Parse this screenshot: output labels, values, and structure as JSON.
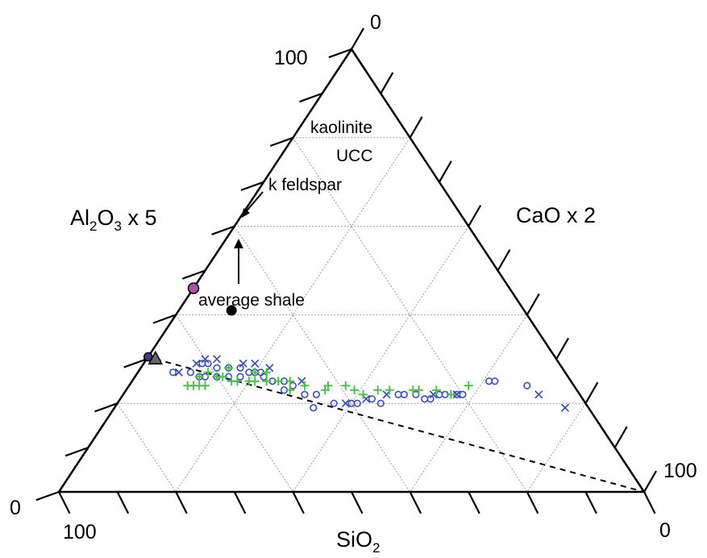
{
  "chart_data": {
    "type": "scatter",
    "subtype": "ternary",
    "axes": {
      "left": {
        "label_main": "Al",
        "sub1": "2",
        "mid": "O",
        "sub2": "3",
        "suffix": " x 5"
      },
      "right": {
        "label": "CaO x 2"
      },
      "bottom": {
        "label_main": "SiO",
        "sub": "2"
      }
    },
    "corner_labels": {
      "top_left": "100",
      "top_right": "0",
      "right_top": "100",
      "right_bottom": "0",
      "left_bottom": "0",
      "bottom_left": "100"
    },
    "grid": true,
    "ticks_per_side": 10,
    "reference_points": [
      {
        "name": "kaolinite",
        "sio2": 54,
        "al2o3x5": 46,
        "caox2": 0,
        "color": "#b04fb0"
      },
      {
        "name": "UCC",
        "sio2": 50,
        "al2o3x5": 41,
        "caox2": 9,
        "color": "#000000"
      },
      {
        "name": "k feldspar",
        "sio2": 69.5,
        "al2o3x5": 30.5,
        "caox2": 0,
        "color": "#3d3d8a"
      },
      {
        "name": "average shale",
        "sio2": 68.5,
        "al2o3x5": 30,
        "caox2": 1.5,
        "color": "#666666"
      }
    ],
    "annotations": {
      "kaolinite": "kaolinite",
      "ucc": "UCC",
      "k_feldspar": "k feldspar",
      "average_shale": "average shale"
    },
    "trend_line": {
      "from": {
        "sio2": 68.5,
        "caox2": 1.5
      },
      "to": {
        "sio2": 0,
        "caox2": 100
      },
      "style": "dashed"
    },
    "series": [
      {
        "marker": "circle",
        "color": "#3d4fb3",
        "points": [
          [
            67,
            6
          ],
          [
            64,
            9
          ],
          [
            63,
            11
          ],
          [
            62,
            12
          ],
          [
            61,
            10
          ],
          [
            60,
            14
          ],
          [
            60,
            11
          ],
          [
            59,
            13
          ],
          [
            58,
            16
          ],
          [
            57,
            15
          ],
          [
            56,
            18
          ],
          [
            55,
            17
          ],
          [
            54,
            19
          ],
          [
            53,
            20
          ],
          [
            52,
            21
          ],
          [
            52,
            22
          ],
          [
            51,
            24
          ],
          [
            50,
            27
          ],
          [
            49,
            26
          ],
          [
            48,
            28
          ],
          [
            47,
            31
          ],
          [
            45,
            33
          ],
          [
            47,
            34
          ],
          [
            43,
            37
          ],
          [
            40,
            40
          ],
          [
            39,
            41
          ],
          [
            36,
            43
          ],
          [
            35,
            45
          ],
          [
            31,
            47
          ],
          [
            30,
            48
          ],
          [
            28,
            50
          ],
          [
            27,
            52
          ],
          [
            26,
            53
          ],
          [
            24,
            54
          ],
          [
            23,
            55
          ],
          [
            21,
            57
          ],
          [
            20,
            58
          ],
          [
            14,
            61
          ],
          [
            13,
            62
          ],
          [
            8,
            68
          ]
        ]
      },
      {
        "marker": "cross",
        "color": "#3d4fb3",
        "points": [
          [
            66,
            7
          ],
          [
            62,
            9
          ],
          [
            60,
            10
          ],
          [
            58,
            12
          ],
          [
            54,
            17
          ],
          [
            52,
            19
          ],
          [
            50,
            22
          ],
          [
            46,
            29
          ],
          [
            41,
            39
          ],
          [
            37,
            42
          ],
          [
            33,
            45
          ],
          [
            25,
            53
          ],
          [
            21,
            57
          ],
          [
            7,
            71
          ],
          [
            4,
            77
          ]
        ]
      },
      {
        "marker": "plus",
        "color": "#4cbf4c",
        "points": [
          [
            66,
            10
          ],
          [
            65,
            11
          ],
          [
            64,
            12
          ],
          [
            63,
            13
          ],
          [
            63,
            11
          ],
          [
            61,
            12
          ],
          [
            60,
            14
          ],
          [
            59,
            15
          ],
          [
            58,
            17
          ],
          [
            57,
            15
          ],
          [
            57,
            18
          ],
          [
            55,
            20
          ],
          [
            54,
            21
          ],
          [
            53,
            20
          ],
          [
            52,
            23
          ],
          [
            51,
            22
          ],
          [
            50,
            25
          ],
          [
            49,
            28
          ],
          [
            48,
            27
          ],
          [
            46,
            30
          ],
          [
            43,
            34
          ],
          [
            42,
            34
          ],
          [
            39,
            37
          ],
          [
            38,
            39
          ],
          [
            37,
            41
          ],
          [
            34,
            43
          ],
          [
            32,
            45
          ],
          [
            28,
            49
          ],
          [
            27,
            50
          ],
          [
            24,
            53
          ],
          [
            18,
            58
          ],
          [
            22,
            56
          ]
        ]
      }
    ]
  }
}
